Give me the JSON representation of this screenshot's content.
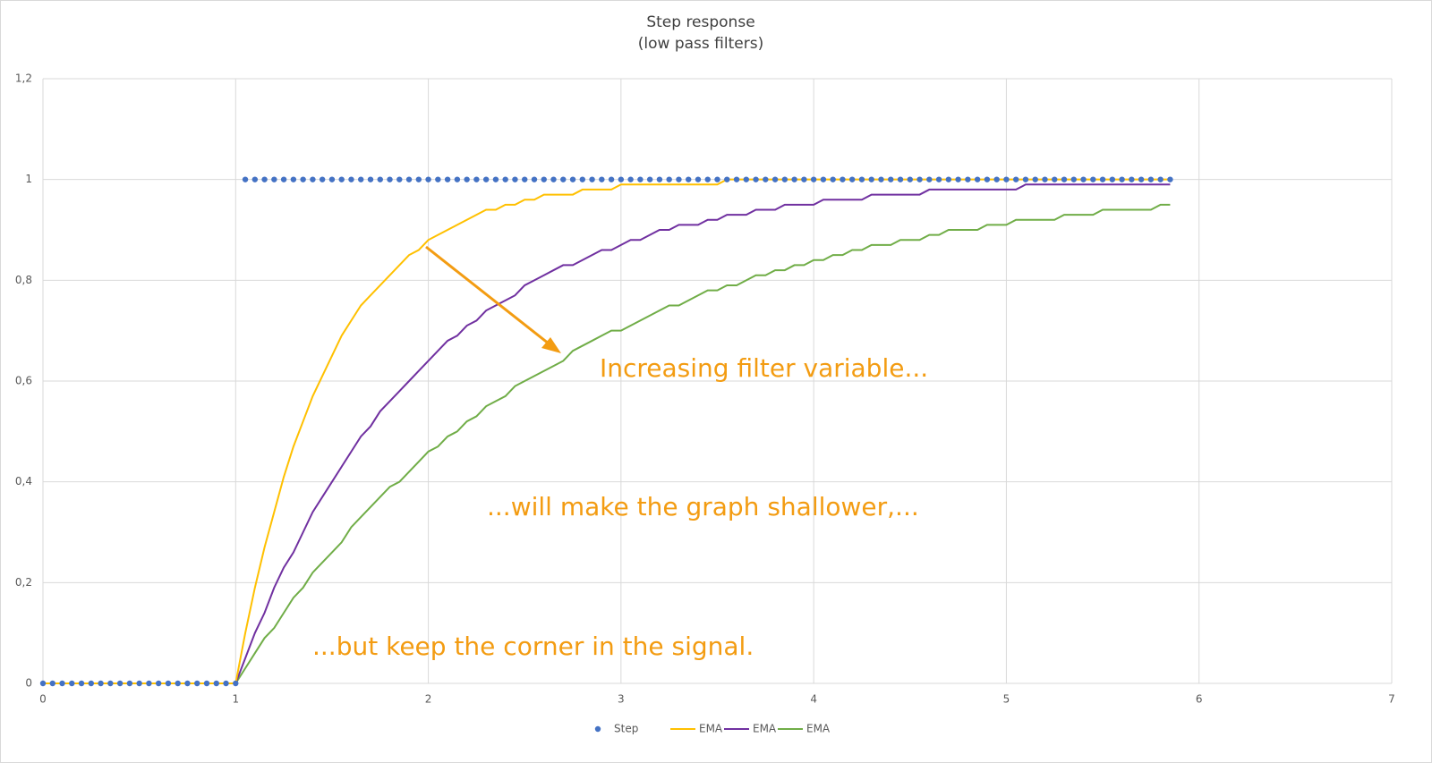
{
  "chart_data": {
    "type": "scatter-line",
    "title": "Step response",
    "subtitle": "(low pass filters)",
    "x": [
      0,
      0.05,
      0.1,
      0.15,
      0.2,
      0.25,
      0.3,
      0.35,
      0.4,
      0.45,
      0.5,
      0.55,
      0.6,
      0.65,
      0.7,
      0.75,
      0.8,
      0.85,
      0.9,
      0.95,
      1,
      1.05,
      1.1,
      1.15,
      1.2,
      1.25,
      1.3,
      1.35,
      1.4,
      1.45,
      1.5,
      1.55,
      1.6,
      1.65,
      1.7,
      1.75,
      1.8,
      1.85,
      1.9,
      1.95,
      2,
      2.05,
      2.1,
      2.15,
      2.2,
      2.25,
      2.3,
      2.35,
      2.4,
      2.45,
      2.5,
      2.55,
      2.6,
      2.65,
      2.7,
      2.75,
      2.8,
      2.85,
      2.9,
      2.95,
      3,
      3.05,
      3.1,
      3.15,
      3.2,
      3.25,
      3.3,
      3.35,
      3.4,
      3.45,
      3.5,
      3.55,
      3.6,
      3.65,
      3.7,
      3.75,
      3.8,
      3.85,
      3.9,
      3.95,
      4,
      4.05,
      4.1,
      4.15,
      4.2,
      4.25,
      4.3,
      4.35,
      4.4,
      4.45,
      4.5,
      4.55,
      4.6,
      4.65,
      4.7,
      4.75,
      4.8,
      4.85,
      4.9,
      4.95,
      5,
      5.05,
      5.1,
      5.15,
      5.2,
      5.25,
      5.3,
      5.35,
      5.4,
      5.45,
      5.5,
      5.55,
      5.6,
      5.65,
      5.7,
      5.75,
      5.8,
      5.85
    ],
    "series": [
      {
        "name": "Step",
        "color": "#4472c4",
        "style": "dots",
        "values": [
          0,
          0,
          0,
          0,
          0,
          0,
          0,
          0,
          0,
          0,
          0,
          0,
          0,
          0,
          0,
          0,
          0,
          0,
          0,
          0,
          0,
          1,
          1,
          1,
          1,
          1,
          1,
          1,
          1,
          1,
          1,
          1,
          1,
          1,
          1,
          1,
          1,
          1,
          1,
          1,
          1,
          1,
          1,
          1,
          1,
          1,
          1,
          1,
          1,
          1,
          1,
          1,
          1,
          1,
          1,
          1,
          1,
          1,
          1,
          1,
          1,
          1,
          1,
          1,
          1,
          1,
          1,
          1,
          1,
          1,
          1,
          1,
          1,
          1,
          1,
          1,
          1,
          1,
          1,
          1,
          1,
          1,
          1,
          1,
          1,
          1,
          1,
          1,
          1,
          1,
          1,
          1,
          1,
          1,
          1,
          1,
          1,
          1,
          1,
          1,
          1,
          1,
          1,
          1,
          1,
          1,
          1,
          1,
          1,
          1,
          1,
          1,
          1,
          1,
          1,
          1,
          1,
          1
        ]
      },
      {
        "name": "EMA",
        "color": "#ffc000",
        "style": "line",
        "values": [
          0,
          0,
          0,
          0,
          0,
          0,
          0,
          0,
          0,
          0,
          0,
          0,
          0,
          0,
          0,
          0,
          0,
          0,
          0,
          0,
          0,
          0.1,
          0.19,
          0.27,
          0.34,
          0.41,
          0.47,
          0.52,
          0.57,
          0.61,
          0.65,
          0.69,
          0.72,
          0.75,
          0.77,
          0.79,
          0.81,
          0.83,
          0.85,
          0.86,
          0.88,
          0.89,
          0.9,
          0.91,
          0.92,
          0.93,
          0.94,
          0.94,
          0.95,
          0.95,
          0.96,
          0.96,
          0.97,
          0.97,
          0.97,
          0.97,
          0.98,
          0.98,
          0.98,
          0.98,
          0.99,
          0.99,
          0.99,
          0.99,
          0.99,
          0.99,
          0.99,
          0.99,
          0.99,
          0.99,
          0.99,
          1,
          1,
          1,
          1,
          1,
          1,
          1,
          1,
          1,
          1,
          1,
          1,
          1,
          1,
          1,
          1,
          1,
          1,
          1,
          1,
          1,
          1,
          1,
          1,
          1,
          1,
          1,
          1,
          1,
          1,
          1,
          1,
          1,
          1,
          1,
          1,
          1,
          1,
          1,
          1,
          1,
          1,
          1,
          1,
          1,
          1,
          1
        ]
      },
      {
        "name": "EMA",
        "color": "#7030a0",
        "style": "line",
        "values": [
          0,
          0,
          0,
          0,
          0,
          0,
          0,
          0,
          0,
          0,
          0,
          0,
          0,
          0,
          0,
          0,
          0,
          0,
          0,
          0,
          0,
          0.05,
          0.1,
          0.14,
          0.19,
          0.23,
          0.26,
          0.3,
          0.34,
          0.37,
          0.4,
          0.43,
          0.46,
          0.49,
          0.51,
          0.54,
          0.56,
          0.58,
          0.6,
          0.62,
          0.64,
          0.66,
          0.68,
          0.69,
          0.71,
          0.72,
          0.74,
          0.75,
          0.76,
          0.77,
          0.79,
          0.8,
          0.81,
          0.82,
          0.83,
          0.83,
          0.84,
          0.85,
          0.86,
          0.86,
          0.87,
          0.88,
          0.88,
          0.89,
          0.9,
          0.9,
          0.91,
          0.91,
          0.91,
          0.92,
          0.92,
          0.93,
          0.93,
          0.93,
          0.94,
          0.94,
          0.94,
          0.95,
          0.95,
          0.95,
          0.95,
          0.96,
          0.96,
          0.96,
          0.96,
          0.96,
          0.97,
          0.97,
          0.97,
          0.97,
          0.97,
          0.97,
          0.98,
          0.98,
          0.98,
          0.98,
          0.98,
          0.98,
          0.98,
          0.98,
          0.98,
          0.98,
          0.99,
          0.99,
          0.99,
          0.99,
          0.99,
          0.99,
          0.99,
          0.99,
          0.99,
          0.99,
          0.99,
          0.99,
          0.99,
          0.99,
          0.99,
          0.99
        ]
      },
      {
        "name": "EMA",
        "color": "#70ad47",
        "style": "line",
        "values": [
          0,
          0,
          0,
          0,
          0,
          0,
          0,
          0,
          0,
          0,
          0,
          0,
          0,
          0,
          0,
          0,
          0,
          0,
          0,
          0,
          0,
          0.03,
          0.06,
          0.09,
          0.11,
          0.14,
          0.17,
          0.19,
          0.22,
          0.24,
          0.26,
          0.28,
          0.31,
          0.33,
          0.35,
          0.37,
          0.39,
          0.4,
          0.42,
          0.44,
          0.46,
          0.47,
          0.49,
          0.5,
          0.52,
          0.53,
          0.55,
          0.56,
          0.57,
          0.59,
          0.6,
          0.61,
          0.62,
          0.63,
          0.64,
          0.66,
          0.67,
          0.68,
          0.69,
          0.7,
          0.7,
          0.71,
          0.72,
          0.73,
          0.74,
          0.75,
          0.75,
          0.76,
          0.77,
          0.78,
          0.78,
          0.79,
          0.79,
          0.8,
          0.81,
          0.81,
          0.82,
          0.82,
          0.83,
          0.83,
          0.84,
          0.84,
          0.85,
          0.85,
          0.86,
          0.86,
          0.87,
          0.87,
          0.87,
          0.88,
          0.88,
          0.88,
          0.89,
          0.89,
          0.9,
          0.9,
          0.9,
          0.9,
          0.91,
          0.91,
          0.91,
          0.92,
          0.92,
          0.92,
          0.92,
          0.92,
          0.93,
          0.93,
          0.93,
          0.93,
          0.94,
          0.94,
          0.94,
          0.94,
          0.94,
          0.94,
          0.95,
          0.95
        ]
      }
    ],
    "xlim": [
      0,
      7
    ],
    "xticks": [
      0,
      1,
      2,
      3,
      4,
      5,
      6,
      7
    ],
    "ylim": [
      0,
      1.2
    ],
    "yticks": [
      0,
      {
        "value": 0.2,
        "label": "0,2"
      },
      {
        "value": 0.4,
        "label": "0,4"
      },
      {
        "value": 0.6,
        "label": "0,6"
      },
      {
        "value": 0.8,
        "label": "0,8"
      },
      1,
      {
        "value": 1.2,
        "label": "1,2"
      }
    ],
    "grid": true,
    "legend": "bottom",
    "annotations": [
      "Increasing filter variable...",
      "...will make the graph shallower,...",
      "...but keep the corner in the signal."
    ]
  }
}
